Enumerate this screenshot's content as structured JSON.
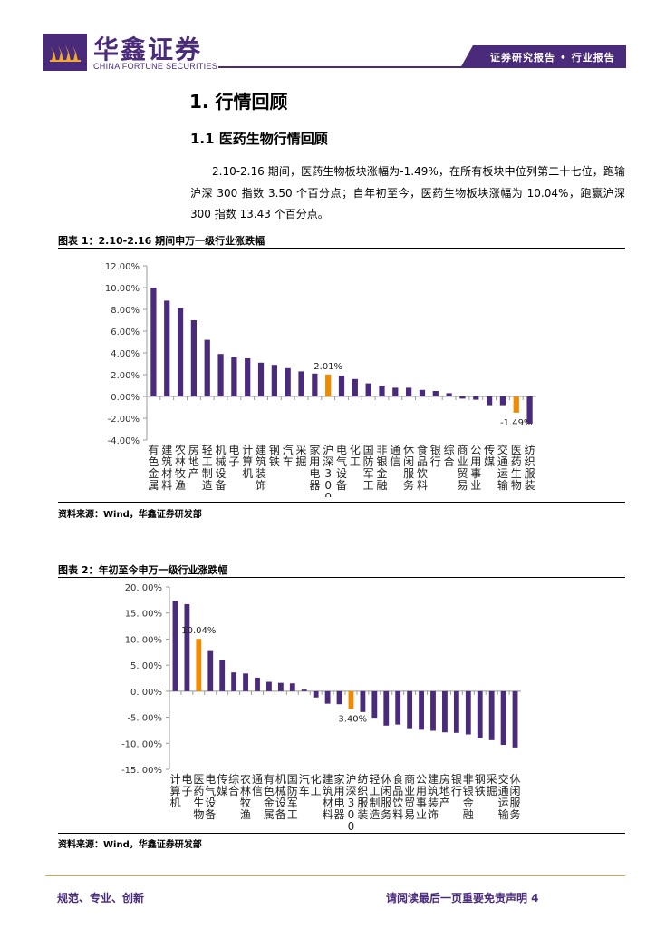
{
  "header": {
    "brand_cn": "华鑫证券",
    "brand_en": "CHINA FORTUNE SECURITIES",
    "tag": "证券研究报告 • 行业报告",
    "brand_color": "#4a2a7a"
  },
  "section": {
    "title": "1.  行情回顾",
    "subtitle": "1.1 医药生物行情回顾",
    "paragraph": "2.10-2.16 期间，医药生物板块涨幅为-1.49%，在所有板块中位列第二十七位，跑输沪深 300 指数 3.50 个百分点；自年初至今，医药生物板块涨幅为 10.04%，跑赢沪深 300 指数 13.43 个百分点。"
  },
  "figure1": {
    "title": "图表 1：2.10-2.16 期间申万一级行业涨跌幅",
    "source": "资料来源：Wind，华鑫证券研发部"
  },
  "figure2": {
    "title": "图表 2：年初至今申万一级行业涨跌幅",
    "source": "资料来源：Wind，华鑫证券研发部"
  },
  "footer": {
    "left": "规范、专业、创新",
    "right": "请阅读最后一页重要免责声明 4"
  },
  "chart_data": [
    {
      "type": "bar",
      "ylim": [
        -4,
        12
      ],
      "yticks": [
        "12.00%",
        "10.00%",
        "8.00%",
        "6.00%",
        "4.00%",
        "2.00%",
        "0.00%",
        "-2.00%",
        "-4.00%"
      ],
      "categories": [
        "有色金属",
        "建筑材料",
        "农林牧渔",
        "房地产",
        "轻工制造",
        "机械设备",
        "电子",
        "计算机",
        "建筑装饰",
        "钢铁",
        "汽车",
        "采掘",
        "家用电器",
        "沪深300",
        "电气设备",
        "化工",
        "国防军工",
        "非银金融",
        "通信",
        "休闲服务",
        "食品饮料",
        "银行",
        "综合",
        "商业贸易",
        "公用事业",
        "传媒",
        "交通运输",
        "医药生物",
        "纺织服装"
      ],
      "values": [
        10.0,
        8.8,
        8.1,
        7.0,
        5.2,
        3.9,
        3.6,
        3.5,
        3.1,
        2.9,
        2.6,
        2.3,
        2.1,
        2.01,
        1.9,
        1.6,
        1.2,
        1.0,
        0.8,
        0.8,
        0.6,
        0.5,
        0.3,
        -0.2,
        -0.3,
        -0.8,
        -0.8,
        -1.49,
        -2.5
      ],
      "highlight": [
        13,
        27
      ],
      "data_labels": {
        "13": "2.01%",
        "27": "-1.49%"
      },
      "color": "#4a2a7a",
      "highlight_color": "#f08a00"
    },
    {
      "type": "bar",
      "ylim": [
        -15,
        20
      ],
      "yticks": [
        "20. 00%",
        "15. 00%",
        "10. 00%",
        "5. 00%",
        "0. 00%",
        "-5. 00%",
        "-10. 00%",
        "-15. 00%"
      ],
      "categories": [
        "计算机",
        "电子",
        "医药生物",
        "电气设备",
        "传媒",
        "综合",
        "农林牧渔",
        "通信",
        "有色金属",
        "机械设备",
        "国防军工",
        "汽车",
        "化工",
        "建筑材料",
        "家用电器",
        "沪深300",
        "纺织服装",
        "轻工制造",
        "休闲服务",
        "食品饮料",
        "商业贸易",
        "公用事业",
        "建筑装饰",
        "房地产",
        "银行",
        "非银金融",
        "钢铁",
        "采掘",
        "交通运输",
        "休闲服务"
      ],
      "values": [
        17.3,
        16.7,
        10.04,
        7.7,
        5.9,
        3.6,
        3.4,
        2.6,
        1.8,
        1.6,
        1.5,
        0.3,
        -1.2,
        -2.4,
        -2.5,
        -3.4,
        -4.0,
        -5.1,
        -6.6,
        -6.4,
        -7.1,
        -7.4,
        -7.6,
        -7.9,
        -8.0,
        -8.3,
        -9.0,
        -9.4,
        -10.3,
        -10.8
      ],
      "highlight": [
        2,
        15
      ],
      "data_labels": {
        "2": "10.04%",
        "15": "-3.40%"
      },
      "color": "#4a2a7a",
      "highlight_color": "#f08a00"
    }
  ]
}
